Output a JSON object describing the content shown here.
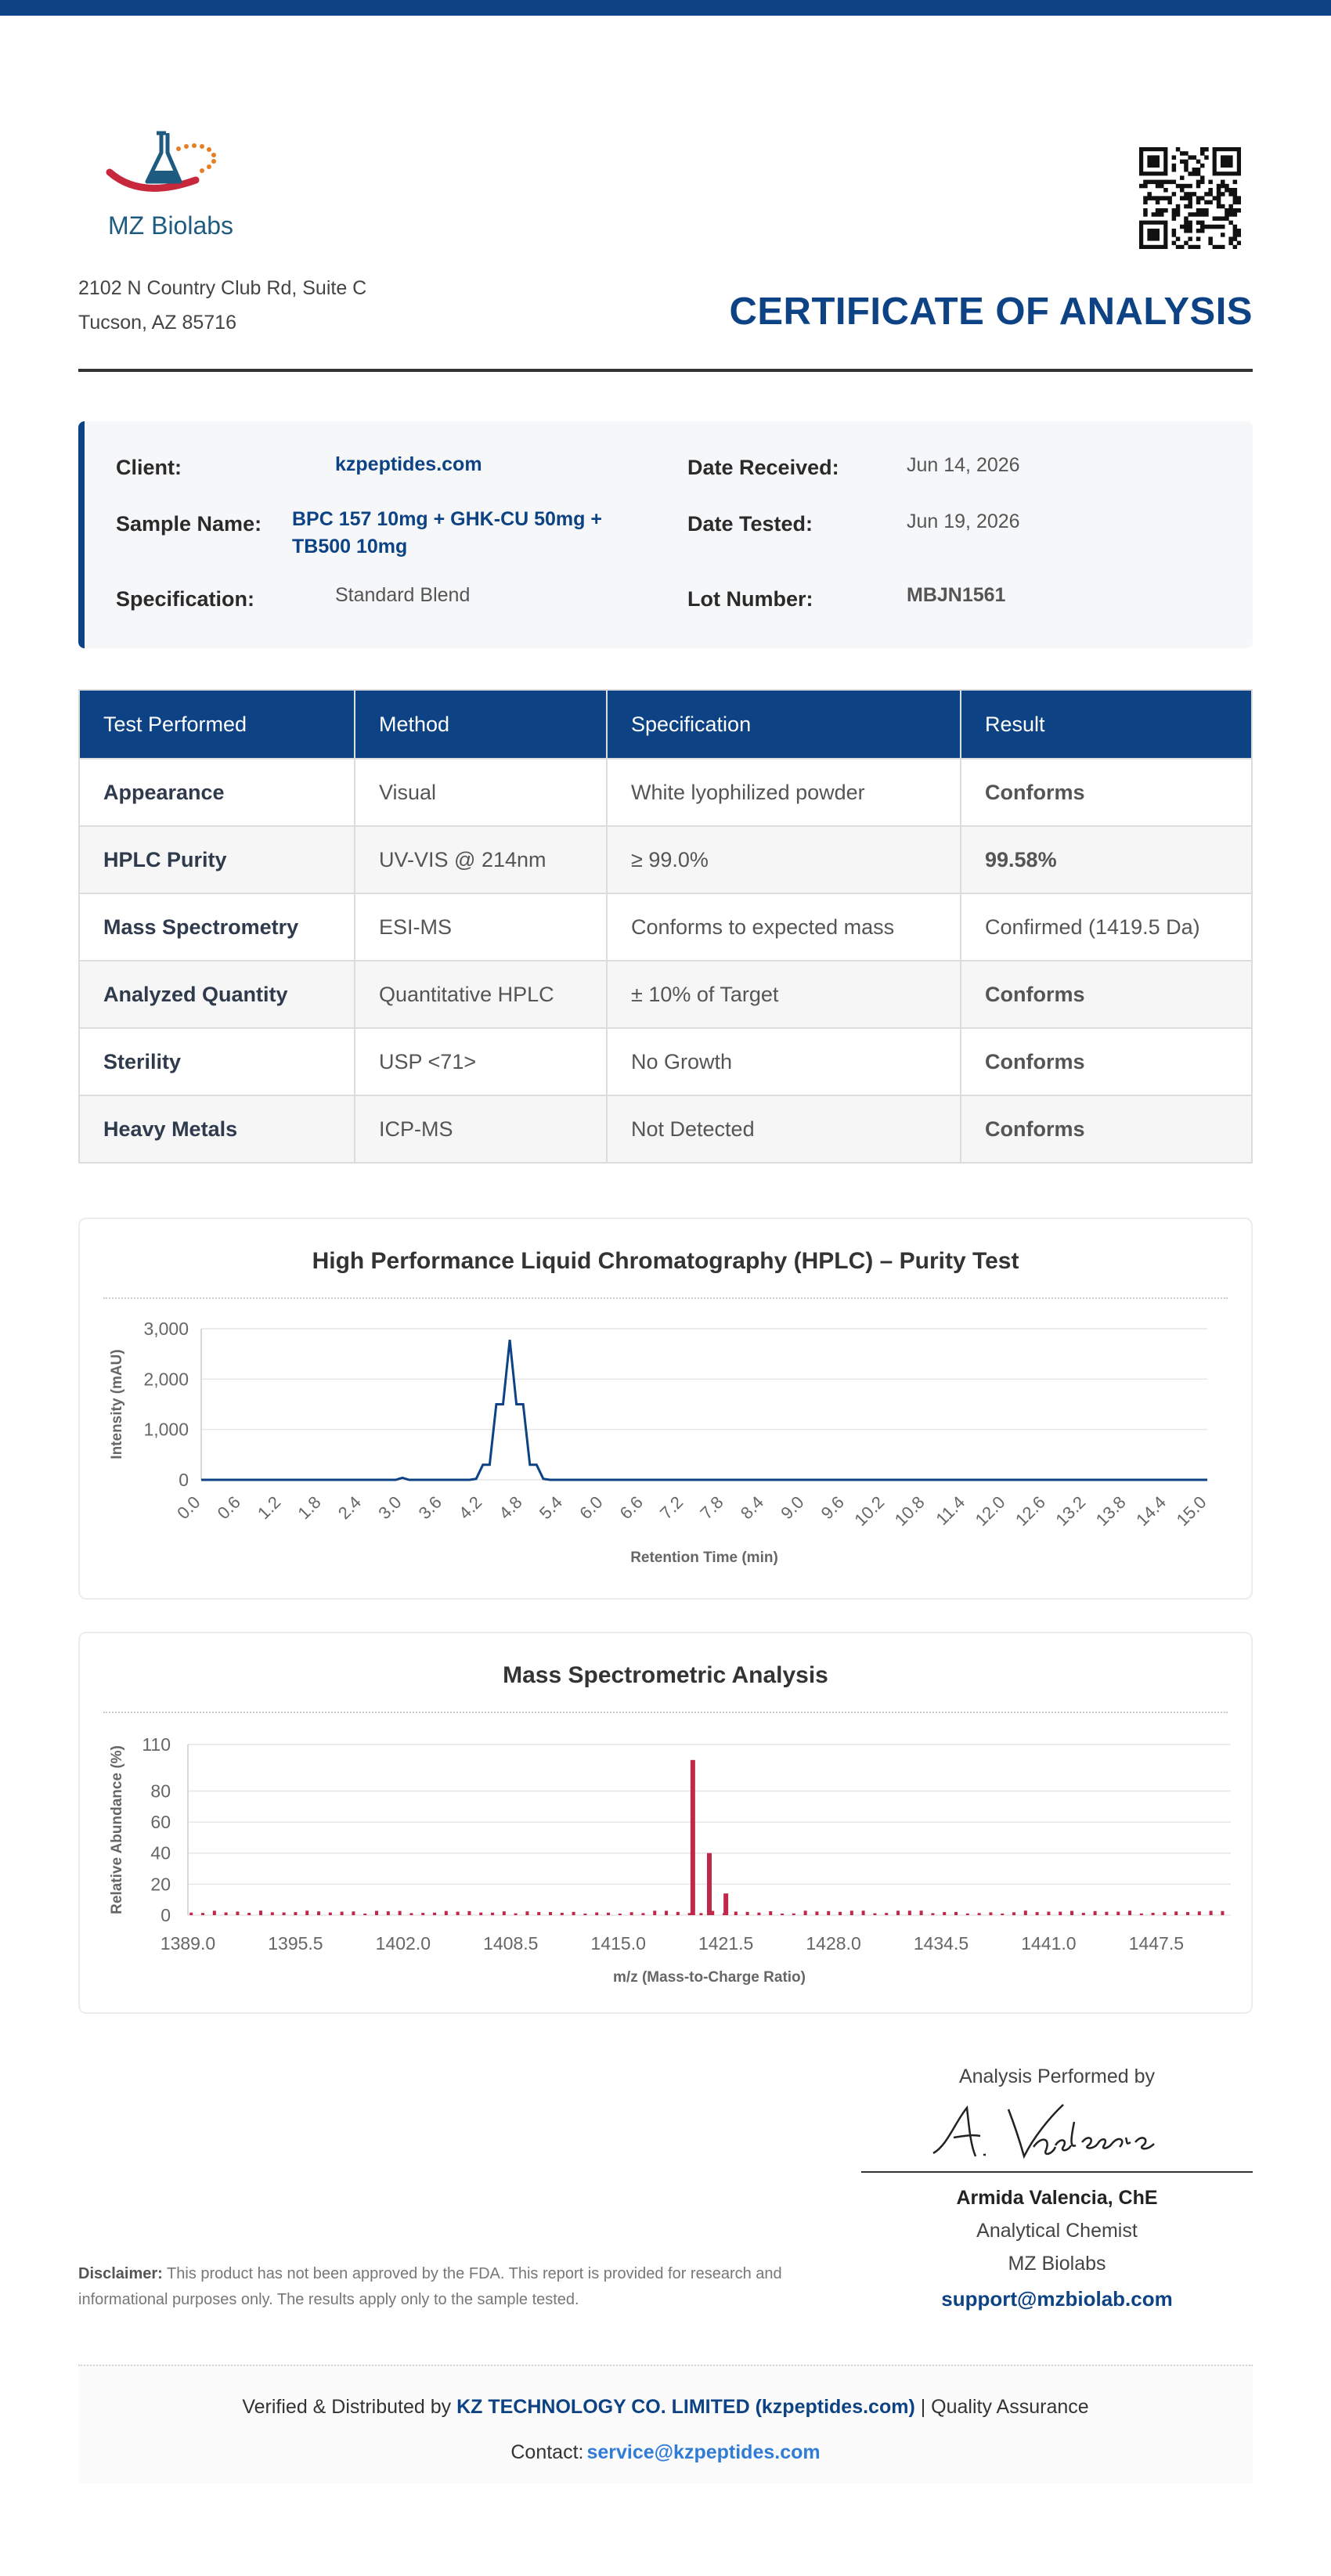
{
  "company": {
    "name": "MZ Biolabs",
    "address_line1": "2102 N Country Club Rd, Suite C",
    "address_line2": "Tucson, AZ 85716"
  },
  "document_title": "CERTIFICATE OF ANALYSIS",
  "info": {
    "client_label": "Client:",
    "client": "kzpeptides.com",
    "sample_label": "Sample Name:",
    "sample_line1": "BPC 157 10mg + GHK-CU 50mg +",
    "sample_line2": "TB500 10mg",
    "spec_label": "Specification:",
    "spec": "Standard Blend",
    "received_label": "Date Received:",
    "received": "Jun 14, 2026",
    "tested_label": "Date Tested:",
    "tested": "Jun 19, 2026",
    "lot_label": "Lot Number:",
    "lot": "MBJN1561"
  },
  "results_table": {
    "headers": [
      "Test Performed",
      "Method",
      "Specification",
      "Result"
    ],
    "rows": [
      [
        "Appearance",
        "Visual",
        "White lyophilized powder",
        "Conforms"
      ],
      [
        "HPLC Purity",
        "UV-VIS @ 214nm",
        "≥ 99.0%",
        "99.58%"
      ],
      [
        "Mass Spectrometry",
        "ESI-MS",
        "Conforms to expected mass",
        "Confirmed (1419.5 Da)"
      ],
      [
        "Analyzed Quantity",
        "Quantitative HPLC",
        "± 10% of Target",
        "Conforms"
      ],
      [
        "Sterility",
        "USP <71>",
        "No Growth",
        "Conforms"
      ],
      [
        "Heavy Metals",
        "ICP-MS",
        "Not Detected",
        "Conforms"
      ]
    ],
    "result_styles": [
      "green",
      "green",
      "plain",
      "dark",
      "green",
      "green"
    ],
    "colors": {
      "header_bg": "#0d4384",
      "pass_green": "#21913b"
    }
  },
  "chart_data": [
    {
      "type": "line",
      "title": "High Performance Liquid Chromatography (HPLC) – Purity Test",
      "xlabel": "Retention Time (min)",
      "ylabel": "Intensity (mAU)",
      "xlim": [
        0,
        15
      ],
      "ylim": [
        0,
        3000
      ],
      "yticks": [
        0,
        1000,
        2000,
        3000
      ],
      "ytick_labels": [
        "0",
        "1,000",
        "2,000",
        "3,000"
      ],
      "xtick_labels": [
        "0.0",
        "0.6",
        "1.2",
        "1.8",
        "2.4",
        "3.0",
        "3.6",
        "4.2",
        "4.8",
        "5.4",
        "6.0",
        "6.6",
        "7.2",
        "7.8",
        "8.4",
        "9.0",
        "9.6",
        "10.2",
        "10.8",
        "11.4",
        "12.0",
        "12.6",
        "13.2",
        "13.8",
        "14.4",
        "15.0"
      ],
      "grid": true,
      "color": "#0d4384",
      "x": [
        0,
        2.9,
        3.0,
        3.1,
        4.0,
        4.1,
        4.2,
        4.3,
        4.4,
        4.5,
        4.6,
        4.7,
        4.8,
        4.9,
        5.0,
        5.1,
        5.2,
        15.0
      ],
      "y": [
        0,
        0,
        40,
        0,
        0,
        20,
        300,
        300,
        1500,
        1500,
        2780,
        1500,
        1500,
        300,
        300,
        20,
        0,
        0
      ]
    },
    {
      "type": "bar",
      "title": "Mass Spectrometric Analysis",
      "xlabel": "m/z (Mass-to-Charge Ratio)",
      "ylabel": "Relative Abundance (%)",
      "xlim": [
        1389.0,
        1452.0
      ],
      "ylim": [
        0,
        110
      ],
      "yticks": [
        0,
        20,
        40,
        60,
        80,
        110
      ],
      "xtick_labels": [
        "1389.0",
        "1395.5",
        "1402.0",
        "1408.5",
        "1415.0",
        "1421.5",
        "1428.0",
        "1434.5",
        "1441.0",
        "1447.5"
      ],
      "grid": true,
      "color": "#c0284a",
      "peaks": [
        {
          "x": 1419.5,
          "y": 100
        },
        {
          "x": 1420.5,
          "y": 40
        },
        {
          "x": 1421.5,
          "y": 14
        }
      ],
      "baseline_noise": "approx. 1–3 %"
    }
  ],
  "signature": {
    "heading": "Analysis Performed by",
    "signature_text": "A. Valencia",
    "name": "Armida Valencia, ChE",
    "role": "Analytical Chemist",
    "org": "MZ Biolabs",
    "email": "support@mzbiolab.com"
  },
  "disclaimer": {
    "label": "Disclaimer:",
    "text": " This product has not been approved by the FDA. This report is provided for research and informational purposes only. The results apply only to the sample tested."
  },
  "footer": {
    "verified_prefix": "Verified & Distributed by ",
    "distributor": "KZ TECHNOLOGY CO. LIMITED (kzpeptides.com)",
    "suffix": " | Quality Assurance",
    "contact_label": "Contact:",
    "contact_email": "service@kzpeptides.com"
  }
}
